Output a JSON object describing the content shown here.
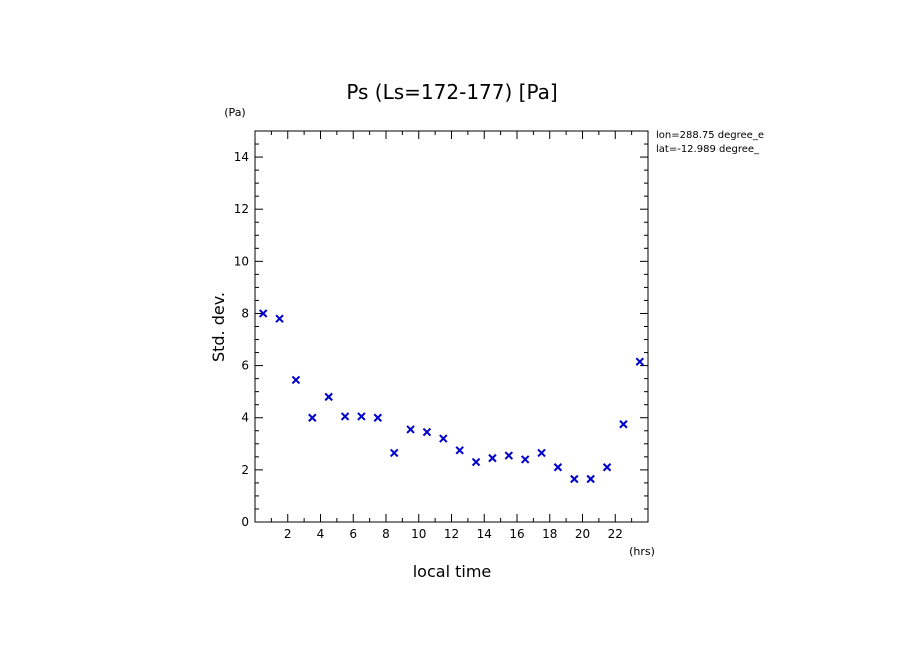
{
  "chart_data": {
    "type": "scatter",
    "title": "Ps (Ls=172-177) [Pa]",
    "xlabel": "local time",
    "ylabel": "Std. dev.",
    "x_unit": "(hrs)",
    "y_unit": "(Pa)",
    "xlim": [
      0,
      24
    ],
    "ylim": [
      0,
      15
    ],
    "x_ticks": [
      2,
      4,
      6,
      8,
      10,
      12,
      14,
      16,
      18,
      20,
      22
    ],
    "y_ticks": [
      0,
      2,
      4,
      6,
      8,
      10,
      12,
      14
    ],
    "marker": "x",
    "marker_color": "#0000cc",
    "grid": false,
    "legend": "none",
    "annotations": [
      "lon=288.75 degree_e",
      "lat=-12.989 degree_"
    ],
    "series": [
      {
        "x": [
          0.5,
          1.5,
          2.5,
          3.5,
          4.5,
          5.5,
          6.5,
          7.5,
          8.5,
          9.5,
          10.5,
          11.5,
          12.5,
          13.5,
          14.5,
          15.5,
          16.5,
          17.5,
          18.5,
          19.5,
          20.5,
          21.5,
          22.5,
          23.5
        ],
        "y": [
          8.0,
          7.8,
          5.45,
          4.0,
          4.8,
          4.05,
          4.05,
          4.0,
          2.65,
          3.55,
          3.45,
          3.2,
          2.75,
          2.3,
          2.45,
          2.55,
          2.4,
          2.65,
          2.1,
          1.65,
          1.65,
          2.1,
          3.75,
          6.15
        ]
      }
    ]
  }
}
